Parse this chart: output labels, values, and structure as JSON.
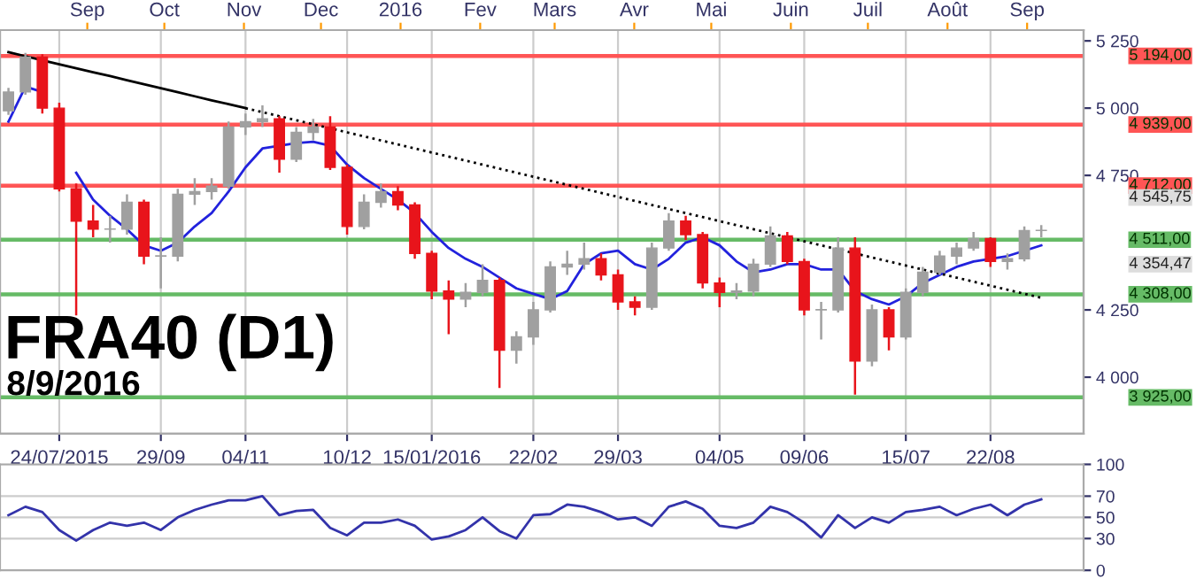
{
  "chart_data": [
    {
      "type": "candlestick",
      "title": "FRA40 (D1)",
      "subtitle": "8/9/2016",
      "categories": [
        null,
        null,
        null,
        "24/07/2015",
        null,
        null,
        null,
        null,
        null,
        "29/09",
        null,
        null,
        null,
        null,
        "04/11",
        null,
        null,
        null,
        null,
        null,
        "10/12",
        null,
        null,
        null,
        null,
        "15/01/2016",
        null,
        null,
        null,
        null,
        null,
        "22/02",
        null,
        null,
        null,
        null,
        "29/03",
        null,
        null,
        null,
        null,
        null,
        "04/05",
        null,
        null,
        null,
        null,
        "09/06",
        null,
        null,
        null,
        null,
        null,
        "15/07",
        null,
        null,
        null,
        null,
        "22/08",
        null,
        null,
        null
      ],
      "series": [
        {
          "type": "candlestick",
          "colors": [
            "#a0a0a0",
            "#a0a0a0",
            "#e8141b",
            "#e8141b",
            "#e8141b",
            "#e8141b",
            "#a0a0a0",
            "#a0a0a0",
            "#e8141b",
            "#a0a0a0",
            "#a0a0a0",
            "#a0a0a0",
            "#a0a0a0",
            "#a0a0a0",
            "#a0a0a0",
            "#a0a0a0",
            "#e8141b",
            "#a0a0a0",
            "#a0a0a0",
            "#e8141b",
            "#e8141b",
            "#a0a0a0",
            "#a0a0a0",
            "#e8141b",
            "#e8141b",
            "#e8141b",
            "#e8141b",
            "#a0a0a0",
            "#a0a0a0",
            "#e8141b",
            "#a0a0a0",
            "#a0a0a0",
            "#a0a0a0",
            "#a0a0a0",
            "#a0a0a0",
            "#e8141b",
            "#e8141b",
            "#e8141b",
            "#a0a0a0",
            "#a0a0a0",
            "#e8141b",
            "#e8141b",
            "#e8141b",
            "#a0a0a0",
            "#a0a0a0",
            "#a0a0a0",
            "#e8141b",
            "#e8141b",
            "#a0a0a0",
            "#a0a0a0",
            "#e8141b",
            "#a0a0a0",
            "#e8141b",
            "#a0a0a0",
            "#a0a0a0",
            "#a0a0a0",
            "#a0a0a0",
            "#a0a0a0",
            "#e8141b",
            "#a0a0a0",
            "#a0a0a0",
            "#a0a0a0"
          ],
          "ohlc": [
            [
              4990,
              5075,
              4975,
              5060
            ],
            [
              5060,
              5205,
              5050,
              5190
            ],
            [
              5190,
              5200,
              4980,
              5000
            ],
            [
              5000,
              5020,
              4690,
              4700
            ],
            [
              4700,
              4720,
              4230,
              4580
            ],
            [
              4580,
              4640,
              4520,
              4550
            ],
            [
              4550,
              4600,
              4500,
              4550
            ],
            [
              4550,
              4680,
              4530,
              4650
            ],
            [
              4650,
              4660,
              4420,
              4450
            ],
            [
              4450,
              4520,
              4330,
              4450
            ],
            [
              4450,
              4700,
              4430,
              4680
            ],
            [
              4680,
              4740,
              4640,
              4690
            ],
            [
              4690,
              4740,
              4660,
              4710
            ],
            [
              4710,
              4950,
              4700,
              4930
            ],
            [
              4930,
              4980,
              4900,
              4950
            ],
            [
              4950,
              5010,
              4930,
              4960
            ],
            [
              4960,
              4970,
              4760,
              4810
            ],
            [
              4810,
              4930,
              4800,
              4910
            ],
            [
              4910,
              4960,
              4880,
              4930
            ],
            [
              4930,
              4970,
              4770,
              4780
            ],
            [
              4780,
              4790,
              4530,
              4560
            ],
            [
              4560,
              4680,
              4550,
              4650
            ],
            [
              4650,
              4720,
              4630,
              4690
            ],
            [
              4690,
              4710,
              4620,
              4640
            ],
            [
              4640,
              4650,
              4440,
              4460
            ],
            [
              4460,
              4470,
              4290,
              4320
            ],
            [
              4320,
              4360,
              4160,
              4290
            ],
            [
              4290,
              4350,
              4260,
              4315
            ],
            [
              4315,
              4420,
              4300,
              4360
            ],
            [
              4360,
              4370,
              3960,
              4100
            ],
            [
              4100,
              4170,
              4050,
              4150
            ],
            [
              4150,
              4280,
              4120,
              4250
            ],
            [
              4250,
              4430,
              4240,
              4410
            ],
            [
              4410,
              4470,
              4380,
              4420
            ],
            [
              4420,
              4500,
              4400,
              4440
            ],
            [
              4440,
              4460,
              4360,
              4380
            ],
            [
              4380,
              4400,
              4250,
              4280
            ],
            [
              4280,
              4300,
              4230,
              4260
            ],
            [
              4260,
              4500,
              4250,
              4480
            ],
            [
              4480,
              4610,
              4470,
              4580
            ],
            [
              4580,
              4600,
              4510,
              4530
            ],
            [
              4530,
              4540,
              4330,
              4350
            ],
            [
              4350,
              4370,
              4260,
              4315
            ],
            [
              4315,
              4350,
              4290,
              4320
            ],
            [
              4320,
              4440,
              4300,
              4420
            ],
            [
              4420,
              4560,
              4410,
              4525
            ],
            [
              4525,
              4540,
              4420,
              4430
            ],
            [
              4430,
              4440,
              4230,
              4250
            ],
            [
              4250,
              4280,
              4140,
              4250
            ],
            [
              4250,
              4520,
              4240,
              4480
            ],
            [
              4480,
              4520,
              3935,
              4060
            ],
            [
              4060,
              4270,
              4040,
              4250
            ],
            [
              4250,
              4260,
              4100,
              4150
            ],
            [
              4150,
              4330,
              4140,
              4315
            ],
            [
              4315,
              4410,
              4300,
              4390
            ],
            [
              4390,
              4470,
              4380,
              4450
            ],
            [
              4450,
              4500,
              4420,
              4480
            ],
            [
              4480,
              4540,
              4470,
              4515
            ],
            [
              4515,
              4520,
              4410,
              4430
            ],
            [
              4430,
              4460,
              4400,
              4440
            ],
            [
              4440,
              4560,
              4430,
              4545
            ],
            [
              4545,
              4565,
              4520,
              4545.75
            ]
          ]
        },
        {
          "type": "line",
          "color": "#2222dd",
          "values": [
            4950,
            5080,
            5060,
            null,
            4760,
            4660,
            4600,
            4550,
            4490,
            4470,
            4500,
            4560,
            4610,
            4690,
            4780,
            4850,
            4860,
            4870,
            4875,
            4860,
            4790,
            4740,
            4700,
            4660,
            4610,
            4540,
            4480,
            4440,
            4410,
            4370,
            4330,
            4310,
            4290,
            4320,
            4420,
            4460,
            4470,
            4420,
            4400,
            4440,
            4500,
            4520,
            4490,
            4430,
            4390,
            4400,
            4420,
            4420,
            4400,
            4400,
            4320,
            4290,
            4270,
            4300,
            4350,
            4380,
            4410,
            4430,
            4440,
            4450,
            4470,
            4490
          ]
        },
        {
          "type": "line",
          "color": "#000000",
          "line_style": "solid",
          "values": [
            5208,
            5193,
            5178,
            5163,
            5148,
            5133,
            5119,
            5104,
            5089,
            5074,
            5059,
            5044,
            5029,
            5015,
            5000,
            null,
            null,
            null,
            null,
            null,
            null,
            null,
            null,
            null,
            null,
            null,
            null,
            null,
            null,
            null,
            null,
            null,
            null,
            null,
            null,
            null,
            null,
            null,
            null,
            null,
            null,
            null,
            null,
            null,
            null,
            null,
            null,
            null,
            null,
            null,
            null,
            null,
            null,
            null,
            null,
            null,
            null,
            null,
            null,
            null,
            null,
            null
          ]
        },
        {
          "type": "line",
          "color": "#000000",
          "line_style": "dotted",
          "values": [
            null,
            null,
            null,
            null,
            null,
            null,
            null,
            null,
            null,
            null,
            null,
            null,
            null,
            null,
            5000,
            4985,
            4970,
            4955,
            4940,
            4925,
            4910,
            4895,
            4880,
            4865,
            4850,
            4835,
            4820,
            4805,
            4790,
            4775,
            4760,
            4745,
            4730,
            4715,
            4700,
            4685,
            4670,
            4655,
            4640,
            4625,
            4610,
            4595,
            4580,
            4565,
            4550,
            4535,
            4520,
            4505,
            4490,
            4475,
            4460,
            4445,
            4430,
            4415,
            4400,
            4385,
            4370,
            4355,
            4340,
            4325,
            4310,
            4295
          ]
        }
      ],
      "x2lim": [
        "2015-07-29",
        "2016-09-23"
      ],
      "x2ticks": [
        {
          "value": "2015-09-01",
          "label": "Sep"
        },
        {
          "value": "2015-10-01",
          "label": "Oct"
        },
        {
          "value": "2015-11-01",
          "label": "Nov"
        },
        {
          "value": "2015-12-01",
          "label": "Dec"
        },
        {
          "value": "2016-01-01",
          "label": "2016"
        },
        {
          "value": "2016-02-01",
          "label": "Fev"
        },
        {
          "value": "2016-03-01",
          "label": "Mars"
        },
        {
          "value": "2016-04-01",
          "label": "Avr"
        },
        {
          "value": "2016-05-01",
          "label": "Mai"
        },
        {
          "value": "2016-06-01",
          "label": "Juin"
        },
        {
          "value": "2016-07-01",
          "label": "Juil"
        },
        {
          "value": "2016-08-01",
          "label": "Août"
        },
        {
          "value": "2016-09-01",
          "label": "Sep"
        }
      ],
      "ylim": [
        3790,
        5290
      ],
      "yticks": [
        {
          "value": 4000,
          "label": "4 000"
        },
        {
          "value": 4250,
          "label": "4 250"
        },
        {
          "value": 4750,
          "label": "4 750"
        },
        {
          "value": 5000,
          "label": "5 000"
        },
        {
          "value": 5250,
          "label": "5 250"
        }
      ],
      "grid": "x",
      "ref_lines": [
        {
          "axis": "y",
          "value": 5194,
          "label": "5 194,00",
          "color": "#ff5555"
        },
        {
          "axis": "y",
          "value": 4939,
          "label": "4 939,00",
          "color": "#ff5555"
        },
        {
          "axis": "y",
          "value": 4712,
          "label": "4 712,00",
          "color": "#ff5555"
        },
        {
          "axis": "y",
          "value": 4511,
          "label": "4 511,00",
          "color": "#66bb66"
        },
        {
          "axis": "y",
          "value": 4308,
          "label": "4 308,00",
          "color": "#66bb66"
        },
        {
          "axis": "y",
          "value": 3925,
          "label": "3 925,00",
          "color": "#66bb66"
        }
      ],
      "annotations": [
        "4 545,75",
        "4 354,47"
      ]
    },
    {
      "type": "line",
      "categories": [
        null,
        null,
        null,
        null,
        null,
        null,
        null,
        null,
        null,
        null,
        null,
        null,
        null,
        null,
        null,
        null,
        null,
        null,
        null,
        null,
        null,
        null,
        null,
        null,
        null,
        null,
        null,
        null,
        null,
        null,
        null,
        null,
        null,
        null,
        null,
        null,
        null,
        null,
        null,
        null,
        null,
        null,
        null,
        null,
        null,
        null,
        null,
        null,
        null,
        null,
        null,
        null,
        null,
        null,
        null,
        null,
        null,
        null,
        null,
        null,
        null,
        null
      ],
      "series": [
        {
          "color": "#3333aa",
          "values": [
            52,
            60,
            55,
            38,
            28,
            38,
            45,
            42,
            45,
            38,
            50,
            57,
            62,
            66,
            66,
            70,
            52,
            56,
            57,
            40,
            33,
            45,
            45,
            48,
            42,
            29,
            32,
            38,
            50,
            37,
            30,
            52,
            53,
            62,
            60,
            55,
            48,
            50,
            42,
            60,
            65,
            58,
            42,
            40,
            45,
            60,
            55,
            45,
            31,
            52,
            40,
            50,
            45,
            55,
            57,
            60,
            52,
            58,
            62,
            52,
            62,
            67
          ]
        }
      ],
      "ylim": [
        0,
        100
      ],
      "yticks": [
        0,
        30,
        50,
        70,
        100
      ],
      "grid": "y",
      "tick_labels": "y"
    }
  ]
}
